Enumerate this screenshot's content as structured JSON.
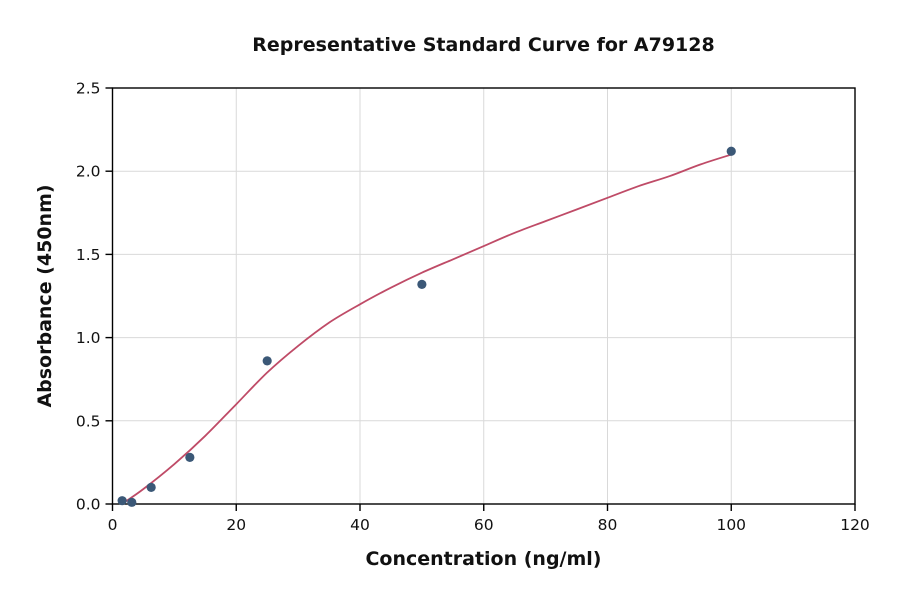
{
  "chart_data": {
    "type": "scatter",
    "title": "Representative Standard Curve for A79128",
    "xlabel": "Concentration (ng/ml)",
    "ylabel": "Absorbance (450nm)",
    "xlim": [
      0,
      120
    ],
    "ylim": [
      0,
      2.5
    ],
    "grid": true,
    "legend": "none",
    "x_ticks": {
      "values": [
        0,
        20,
        40,
        60,
        80,
        100,
        120
      ],
      "labels": [
        "0",
        "20",
        "40",
        "60",
        "80",
        "100",
        "120"
      ]
    },
    "y_ticks": {
      "values": [
        0,
        0.5,
        1.0,
        1.5,
        2.0,
        2.5
      ],
      "labels": [
        "0.0",
        "0.5",
        "1.0",
        "1.5",
        "2.0",
        "2.5"
      ]
    },
    "colors": {
      "point": "#3b5877",
      "curve": "#bf4b67",
      "grid": "#d9d9d9",
      "frame": "#000000",
      "text": "#111111",
      "background": "#ffffff"
    },
    "series": [
      {
        "name": "standard-points",
        "kind": "scatter",
        "x": [
          1.56,
          3.12,
          6.25,
          12.5,
          25,
          50,
          100
        ],
        "y": [
          0.02,
          0.01,
          0.1,
          0.28,
          0.86,
          1.32,
          2.12
        ]
      },
      {
        "name": "fit-curve",
        "kind": "line",
        "x": [
          1.5,
          5,
          10,
          15,
          20,
          25,
          30,
          35,
          40,
          45,
          50,
          55,
          60,
          65,
          70,
          75,
          80,
          85,
          90,
          95,
          100
        ],
        "y": [
          0.0,
          0.09,
          0.24,
          0.41,
          0.6,
          0.79,
          0.95,
          1.09,
          1.2,
          1.3,
          1.39,
          1.47,
          1.55,
          1.63,
          1.7,
          1.77,
          1.84,
          1.91,
          1.97,
          2.04,
          2.1
        ]
      }
    ]
  }
}
